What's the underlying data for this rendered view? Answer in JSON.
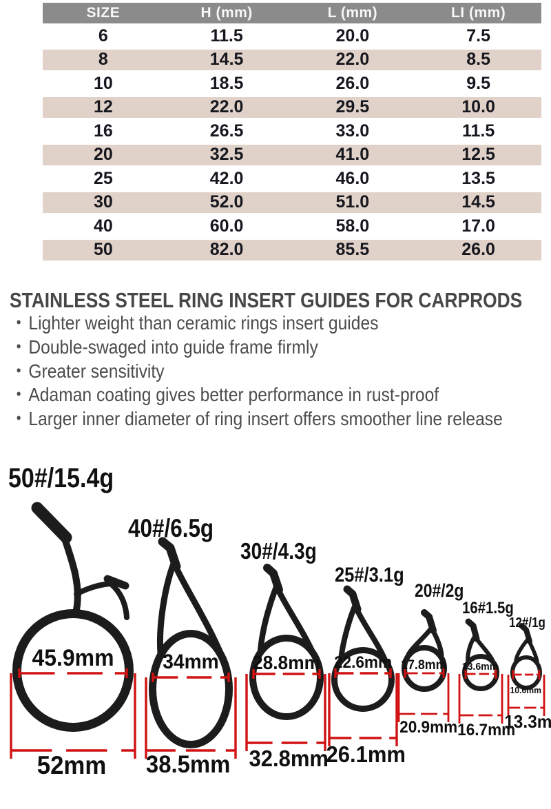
{
  "table": {
    "headers": [
      "SIZE",
      "H (mm)",
      "L (mm)",
      "LI (mm)"
    ],
    "rows": [
      [
        "6",
        "11.5",
        "20.0",
        "7.5"
      ],
      [
        "8",
        "14.5",
        "22.0",
        "8.5"
      ],
      [
        "10",
        "18.5",
        "26.0",
        "9.5"
      ],
      [
        "12",
        "22.0",
        "29.5",
        "10.0"
      ],
      [
        "16",
        "26.5",
        "33.0",
        "11.5"
      ],
      [
        "20",
        "32.5",
        "41.0",
        "12.5"
      ],
      [
        "25",
        "42.0",
        "46.0",
        "13.5"
      ],
      [
        "30",
        "52.0",
        "51.0",
        "14.5"
      ],
      [
        "40",
        "60.0",
        "58.0",
        "17.0"
      ],
      [
        "50",
        "82.0",
        "85.5",
        "26.0"
      ]
    ]
  },
  "description": {
    "title": "STAINLESS STEEL RING INSERT GUIDES FOR CARPRODS",
    "bullets": [
      "Lighter weight than ceramic rings insert guides",
      "Double-swaged into guide frame firmly",
      "Greater sensitivity",
      "Adaman coating gives better performance in rust-proof",
      "Larger inner diameter of ring insert offers smoother line release"
    ]
  },
  "guides": [
    {
      "label": "50#/15.4g",
      "inner": "45.9mm",
      "bottom": "52mm"
    },
    {
      "label": "40#/6.5g",
      "inner": "34mm",
      "bottom": "38.5mm"
    },
    {
      "label": "30#/4.3g",
      "inner": "28.8mm",
      "bottom": "32.8mm"
    },
    {
      "label": "25#/3.1g",
      "inner": "22.6mm",
      "bottom": "26.1mm"
    },
    {
      "label": "20#/2g",
      "inner": "17.8mm",
      "bottom": "20.9mm"
    },
    {
      "label": "16#1.5g",
      "inner": "13.6mm",
      "bottom": "16.7mm"
    },
    {
      "label": "12#/1g",
      "inner": "10.6mm",
      "bottom": "13.3mm"
    }
  ],
  "colors": {
    "accent_red": "#d01212",
    "guide_black": "#1c1c1c",
    "header_gray": "#8b8b8b",
    "row_tan": "#e0d2c8",
    "text_dark": "#17171f"
  }
}
